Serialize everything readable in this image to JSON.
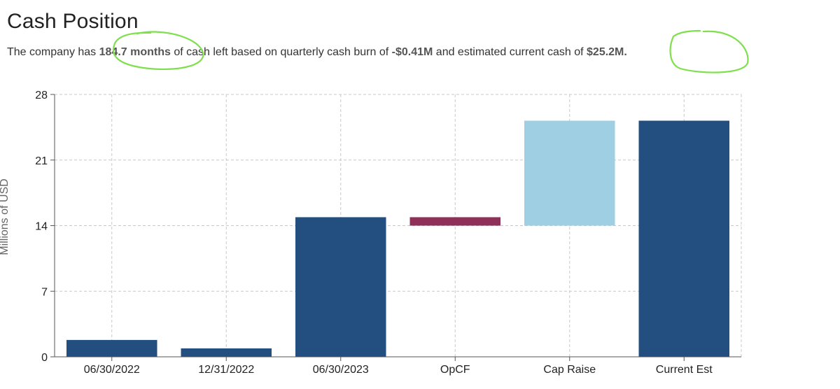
{
  "header": {
    "title": "Cash Position",
    "summary_prefix": "The company has ",
    "months_left": "184.7 months",
    "summary_mid1": " of cash left based on quarterly cash burn of ",
    "quarterly_burn": "-$0.41M",
    "summary_mid2": " and estimated current cash of ",
    "current_cash": "$25.2M.",
    "annotation_color": "#7ee04c"
  },
  "chart_data": {
    "type": "bar",
    "subtype": "waterfall",
    "ylabel": "Millions of USD",
    "ylim": [
      0,
      28
    ],
    "yticks": [
      0,
      7,
      14,
      21,
      28
    ],
    "grid": true,
    "categories": [
      "06/30/2022",
      "12/31/2022",
      "06/30/2023",
      "OpCF",
      "Cap Raise",
      "Current Est"
    ],
    "bars": [
      {
        "category": "06/30/2022",
        "base": 0,
        "top": 1.8,
        "color": "#224e80"
      },
      {
        "category": "12/31/2022",
        "base": 0,
        "top": 0.9,
        "color": "#224e80"
      },
      {
        "category": "06/30/2023",
        "base": 0,
        "top": 14.9,
        "color": "#224e80"
      },
      {
        "category": "OpCF",
        "base": 14.0,
        "top": 14.9,
        "color": "#8e3058"
      },
      {
        "category": "Cap Raise",
        "base": 14.0,
        "top": 25.2,
        "color": "#9ecfe3"
      },
      {
        "category": "Current Est",
        "base": 0,
        "top": 25.2,
        "color": "#224e80"
      }
    ]
  }
}
